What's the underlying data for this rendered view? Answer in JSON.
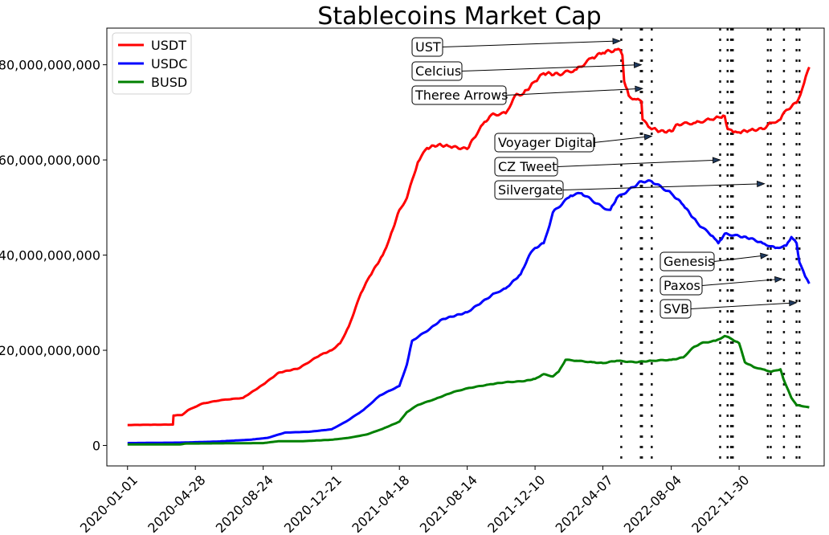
{
  "chart_data": {
    "type": "line",
    "title": "Stablecoins Market Cap",
    "xlabel": "",
    "ylabel": "",
    "x_tick_labels": [
      "2020-01-01",
      "2020-04-28",
      "2020-08-24",
      "2020-12-21",
      "2021-04-18",
      "2021-08-14",
      "2021-12-10",
      "2022-04-07",
      "2022-08-04",
      "2022-11-30"
    ],
    "x_range": [
      "2019-11-26",
      "2023-04-27"
    ],
    "y_ticks": [
      0,
      20000000000,
      40000000000,
      60000000000,
      80000000000
    ],
    "y_tick_labels": [
      "0",
      "20,000,000,000",
      "40,000,000,000",
      "60,000,000,000",
      "80,000,000,000"
    ],
    "ylim": [
      -4300000000,
      87700000000
    ],
    "grid": false,
    "legend_position": "upper-left",
    "series": [
      {
        "name": "USDT",
        "color": "#ff0000",
        "points": [
          [
            "2020-01-01",
            4300000000.0
          ],
          [
            "2020-03-20",
            4400000000.0
          ],
          [
            "2020-03-21",
            6300000000.0
          ],
          [
            "2020-04-05",
            6400000000.0
          ],
          [
            "2020-04-15",
            7400000000.0
          ],
          [
            "2020-05-10",
            8800000000.0
          ],
          [
            "2020-06-10",
            9500000000.0
          ],
          [
            "2020-07-20",
            10000000000.0
          ],
          [
            "2020-08-24",
            12800000000.0
          ],
          [
            "2020-09-20",
            15300000000.0
          ],
          [
            "2020-10-25",
            16200000000.0
          ],
          [
            "2020-12-01",
            19000000000.0
          ],
          [
            "2020-12-21",
            20000000000.0
          ],
          [
            "2021-01-05",
            21500000000.0
          ],
          [
            "2021-01-20",
            25000000000.0
          ],
          [
            "2021-02-10",
            32000000000.0
          ],
          [
            "2021-02-25",
            35500000000.0
          ],
          [
            "2021-03-20",
            40000000000.0
          ],
          [
            "2021-04-01",
            43500000000.0
          ],
          [
            "2021-04-18",
            49500000000.0
          ],
          [
            "2021-05-01",
            52000000000.0
          ],
          [
            "2021-05-20",
            59500000000.0
          ],
          [
            "2021-06-05",
            62500000000.0
          ],
          [
            "2021-06-25",
            63200000000.0
          ],
          [
            "2021-07-15",
            62800000000.0
          ],
          [
            "2021-08-14",
            62300000000.0
          ],
          [
            "2021-08-25",
            64500000000.0
          ],
          [
            "2021-09-10",
            67500000000.0
          ],
          [
            "2021-09-25",
            69500000000.0
          ],
          [
            "2021-10-20",
            69800000000.0
          ],
          [
            "2021-11-05",
            73500000000.0
          ],
          [
            "2021-11-20",
            74000000000.0
          ],
          [
            "2021-12-10",
            76500000000.0
          ],
          [
            "2021-12-25",
            78200000000.0
          ],
          [
            "2022-01-20",
            78000000000.0
          ],
          [
            "2022-02-20",
            79000000000.0
          ],
          [
            "2022-03-20",
            81500000000.0
          ],
          [
            "2022-04-07",
            82500000000.0
          ],
          [
            "2022-05-01",
            83200000000.0
          ],
          [
            "2022-05-07",
            83100000000.0
          ],
          [
            "2022-05-11",
            82000000000.0
          ],
          [
            "2022-05-14",
            76500000000.0
          ],
          [
            "2022-05-22",
            73500000000.0
          ],
          [
            "2022-06-01",
            72800000000.0
          ],
          [
            "2022-06-13",
            72300000000.0
          ],
          [
            "2022-06-15",
            68500000000.0
          ],
          [
            "2022-06-25",
            67000000000.0
          ],
          [
            "2022-07-15",
            66000000000.0
          ],
          [
            "2022-08-04",
            66000000000.0
          ],
          [
            "2022-08-15",
            67500000000.0
          ],
          [
            "2022-09-15",
            67800000000.0
          ],
          [
            "2022-10-10",
            68500000000.0
          ],
          [
            "2022-10-25",
            69000000000.0
          ],
          [
            "2022-11-05",
            69200000000.0
          ],
          [
            "2022-11-10",
            66500000000.0
          ],
          [
            "2022-11-20",
            65800000000.0
          ],
          [
            "2022-11-30",
            65800000000.0
          ],
          [
            "2022-12-20",
            66300000000.0
          ],
          [
            "2023-01-10",
            66500000000.0
          ],
          [
            "2023-01-25",
            67800000000.0
          ],
          [
            "2023-02-10",
            68500000000.0
          ],
          [
            "2023-02-20",
            70500000000.0
          ],
          [
            "2023-03-10",
            72000000000.0
          ],
          [
            "2023-03-20",
            75000000000.0
          ],
          [
            "2023-04-01",
            79500000000.0
          ]
        ]
      },
      {
        "name": "USDC",
        "color": "#0000ff",
        "points": [
          [
            "2020-01-01",
            500000000.0
          ],
          [
            "2020-04-01",
            600000000.0
          ],
          [
            "2020-06-01",
            800000000.0
          ],
          [
            "2020-08-01",
            1200000000.0
          ],
          [
            "2020-09-01",
            1600000000.0
          ],
          [
            "2020-10-01",
            2700000000.0
          ],
          [
            "2020-11-15",
            2900000000.0
          ],
          [
            "2020-12-21",
            3400000000.0
          ],
          [
            "2021-01-15",
            5000000000.0
          ],
          [
            "2021-02-15",
            7500000000.0
          ],
          [
            "2021-03-15",
            10500000000.0
          ],
          [
            "2021-04-18",
            12500000000.0
          ],
          [
            "2021-05-01",
            17000000000.0
          ],
          [
            "2021-05-10",
            22000000000.0
          ],
          [
            "2021-06-10",
            24500000000.0
          ],
          [
            "2021-07-01",
            26500000000.0
          ],
          [
            "2021-08-14",
            28000000000.0
          ],
          [
            "2021-09-01",
            29500000000.0
          ],
          [
            "2021-10-01",
            32000000000.0
          ],
          [
            "2021-10-20",
            33000000000.0
          ],
          [
            "2021-11-15",
            36000000000.0
          ],
          [
            "2021-11-30",
            40000000000.0
          ],
          [
            "2021-12-10",
            41500000000.0
          ],
          [
            "2021-12-25",
            42500000000.0
          ],
          [
            "2022-01-01",
            45000000000.0
          ],
          [
            "2022-01-10",
            49000000000.0
          ],
          [
            "2022-02-10",
            52500000000.0
          ],
          [
            "2022-03-01",
            53000000000.0
          ],
          [
            "2022-04-07",
            50000000000.0
          ],
          [
            "2022-04-20",
            49500000000.0
          ],
          [
            "2022-05-01",
            52000000000.0
          ],
          [
            "2022-05-20",
            53500000000.0
          ],
          [
            "2022-06-13",
            55500000000.0
          ],
          [
            "2022-07-01",
            55500000000.0
          ],
          [
            "2022-08-04",
            53000000000.0
          ],
          [
            "2022-08-25",
            50500000000.0
          ],
          [
            "2022-09-20",
            46500000000.0
          ],
          [
            "2022-10-15",
            44000000000.0
          ],
          [
            "2022-10-25",
            42500000000.0
          ],
          [
            "2022-11-05",
            44500000000.0
          ],
          [
            "2022-11-30",
            44000000000.0
          ],
          [
            "2022-12-20",
            43500000000.0
          ],
          [
            "2023-01-10",
            42500000000.0
          ],
          [
            "2023-02-01",
            41500000000.0
          ],
          [
            "2023-02-20",
            42000000000.0
          ],
          [
            "2023-03-01",
            43800000000.0
          ],
          [
            "2023-03-10",
            42500000000.0
          ],
          [
            "2023-03-15",
            38500000000.0
          ],
          [
            "2023-03-25",
            35500000000.0
          ],
          [
            "2023-04-01",
            34000000000.0
          ]
        ]
      },
      {
        "name": "BUSD",
        "color": "#008000",
        "points": [
          [
            "2020-01-01",
            200000000.0
          ],
          [
            "2020-04-01",
            200000000.0
          ],
          [
            "2020-04-10",
            400000000.0
          ],
          [
            "2020-08-24",
            500000000.0
          ],
          [
            "2020-09-20",
            900000000.0
          ],
          [
            "2020-11-01",
            900000000.0
          ],
          [
            "2020-12-21",
            1200000000.0
          ],
          [
            "2021-01-20",
            1600000000.0
          ],
          [
            "2021-02-20",
            2300000000.0
          ],
          [
            "2021-03-20",
            3500000000.0
          ],
          [
            "2021-04-18",
            5000000000.0
          ],
          [
            "2021-05-01",
            7000000000.0
          ],
          [
            "2021-05-20",
            8500000000.0
          ],
          [
            "2021-06-20",
            9800000000.0
          ],
          [
            "2021-07-20",
            11200000000.0
          ],
          [
            "2021-08-14",
            12000000000.0
          ],
          [
            "2021-09-20",
            12800000000.0
          ],
          [
            "2021-10-20",
            13300000000.0
          ],
          [
            "2021-11-20",
            13500000000.0
          ],
          [
            "2021-12-10",
            14000000000.0
          ],
          [
            "2021-12-25",
            15000000000.0
          ],
          [
            "2022-01-10",
            14500000000.0
          ],
          [
            "2022-01-20",
            15500000000.0
          ],
          [
            "2022-02-01",
            18000000000.0
          ],
          [
            "2022-02-20",
            17800000000.0
          ],
          [
            "2022-03-20",
            17500000000.0
          ],
          [
            "2022-04-07",
            17300000000.0
          ],
          [
            "2022-05-01",
            17800000000.0
          ],
          [
            "2022-06-01",
            17500000000.0
          ],
          [
            "2022-07-01",
            17800000000.0
          ],
          [
            "2022-08-04",
            18000000000.0
          ],
          [
            "2022-08-25",
            18500000000.0
          ],
          [
            "2022-09-10",
            20500000000.0
          ],
          [
            "2022-09-25",
            21500000000.0
          ],
          [
            "2022-10-20",
            22000000000.0
          ],
          [
            "2022-11-05",
            23000000000.0
          ],
          [
            "2022-11-15",
            22500000000.0
          ],
          [
            "2022-11-30",
            21500000000.0
          ],
          [
            "2022-12-10",
            17500000000.0
          ],
          [
            "2022-12-25",
            16500000000.0
          ],
          [
            "2023-01-10",
            16000000000.0
          ],
          [
            "2023-01-25",
            15500000000.0
          ],
          [
            "2023-02-10",
            16000000000.0
          ],
          [
            "2023-02-15",
            14000000000.0
          ],
          [
            "2023-03-01",
            10000000000.0
          ],
          [
            "2023-03-10",
            8500000000.0
          ],
          [
            "2023-04-01",
            8000000000.0
          ]
        ]
      }
    ],
    "event_lines": [
      "2022-05-09",
      "2022-06-12",
      "2022-06-14",
      "2022-07-01",
      "2022-10-28",
      "2022-11-10",
      "2022-11-16",
      "2022-11-19",
      "2023-01-19",
      "2023-01-24",
      "2023-02-16",
      "2023-03-10",
      "2023-03-15"
    ],
    "annotations": [
      {
        "text": "UST",
        "target": [
          "2022-05-07",
          85000000000.0
        ]
      },
      {
        "text": "Celcius",
        "target": [
          "2022-06-13",
          80000000000.0
        ]
      },
      {
        "text": "Theree Arrows",
        "target": [
          "2022-06-15",
          75000000000.0
        ]
      },
      {
        "text": "Voyager Digital",
        "target": [
          "2022-07-01",
          65000000000.0
        ]
      },
      {
        "text": "CZ Tweet",
        "target": [
          "2022-10-28",
          60000000000.0
        ]
      },
      {
        "text": "Silvergate",
        "target": [
          "2023-01-13",
          55000000000.0
        ]
      },
      {
        "text": "Genesis",
        "target": [
          "2023-01-19",
          40000000000.0
        ]
      },
      {
        "text": "Paxos",
        "target": [
          "2023-02-13",
          35000000000.0
        ]
      },
      {
        "text": "SVB",
        "target": [
          "2023-03-10",
          30000000000.0
        ]
      }
    ]
  }
}
